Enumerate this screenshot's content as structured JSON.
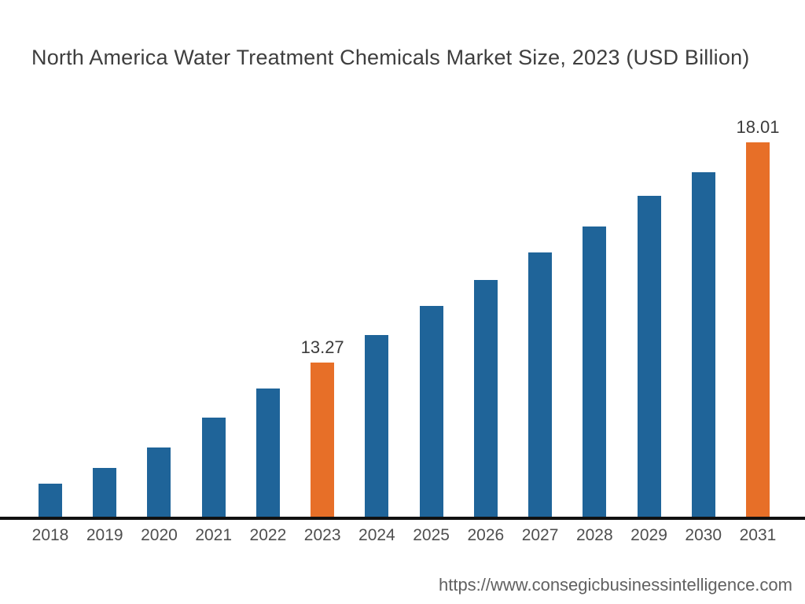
{
  "chart_data": {
    "type": "bar",
    "title": "North America Water Treatment Chemicals Market Size, 2023 (USD Billion)",
    "xlabel": "",
    "ylabel": "",
    "categories": [
      "2018",
      "2019",
      "2020",
      "2021",
      "2022",
      "2023",
      "2024",
      "2025",
      "2026",
      "2027",
      "2028",
      "2029",
      "2030",
      "2031"
    ],
    "values": [
      10.66,
      11.0,
      11.44,
      12.08,
      12.71,
      13.27,
      13.86,
      14.49,
      15.05,
      15.64,
      16.2,
      16.86,
      17.37,
      18.01
    ],
    "labeled_points": [
      {
        "category": "2023",
        "label": "13.27"
      },
      {
        "category": "2031",
        "label": "18.01"
      }
    ],
    "highlighted_categories": [
      "2023",
      "2031"
    ],
    "series_name": "Market Size (USD Billion)",
    "y_axis_visible": false,
    "grid": false,
    "legend": "none",
    "baseline_value_implied": 9.95,
    "colors": {
      "bar": "#1F6499",
      "bar_highlight": "#E76F28",
      "axis_line": "#111111",
      "title_text": "#3E3E3E",
      "tick_text": "#4F4F4F",
      "value_label_text": "#3C3C3C",
      "url_text": "#616161"
    }
  },
  "footer": {
    "source_url": "https://www.consegicbusinessintelligence.com"
  }
}
